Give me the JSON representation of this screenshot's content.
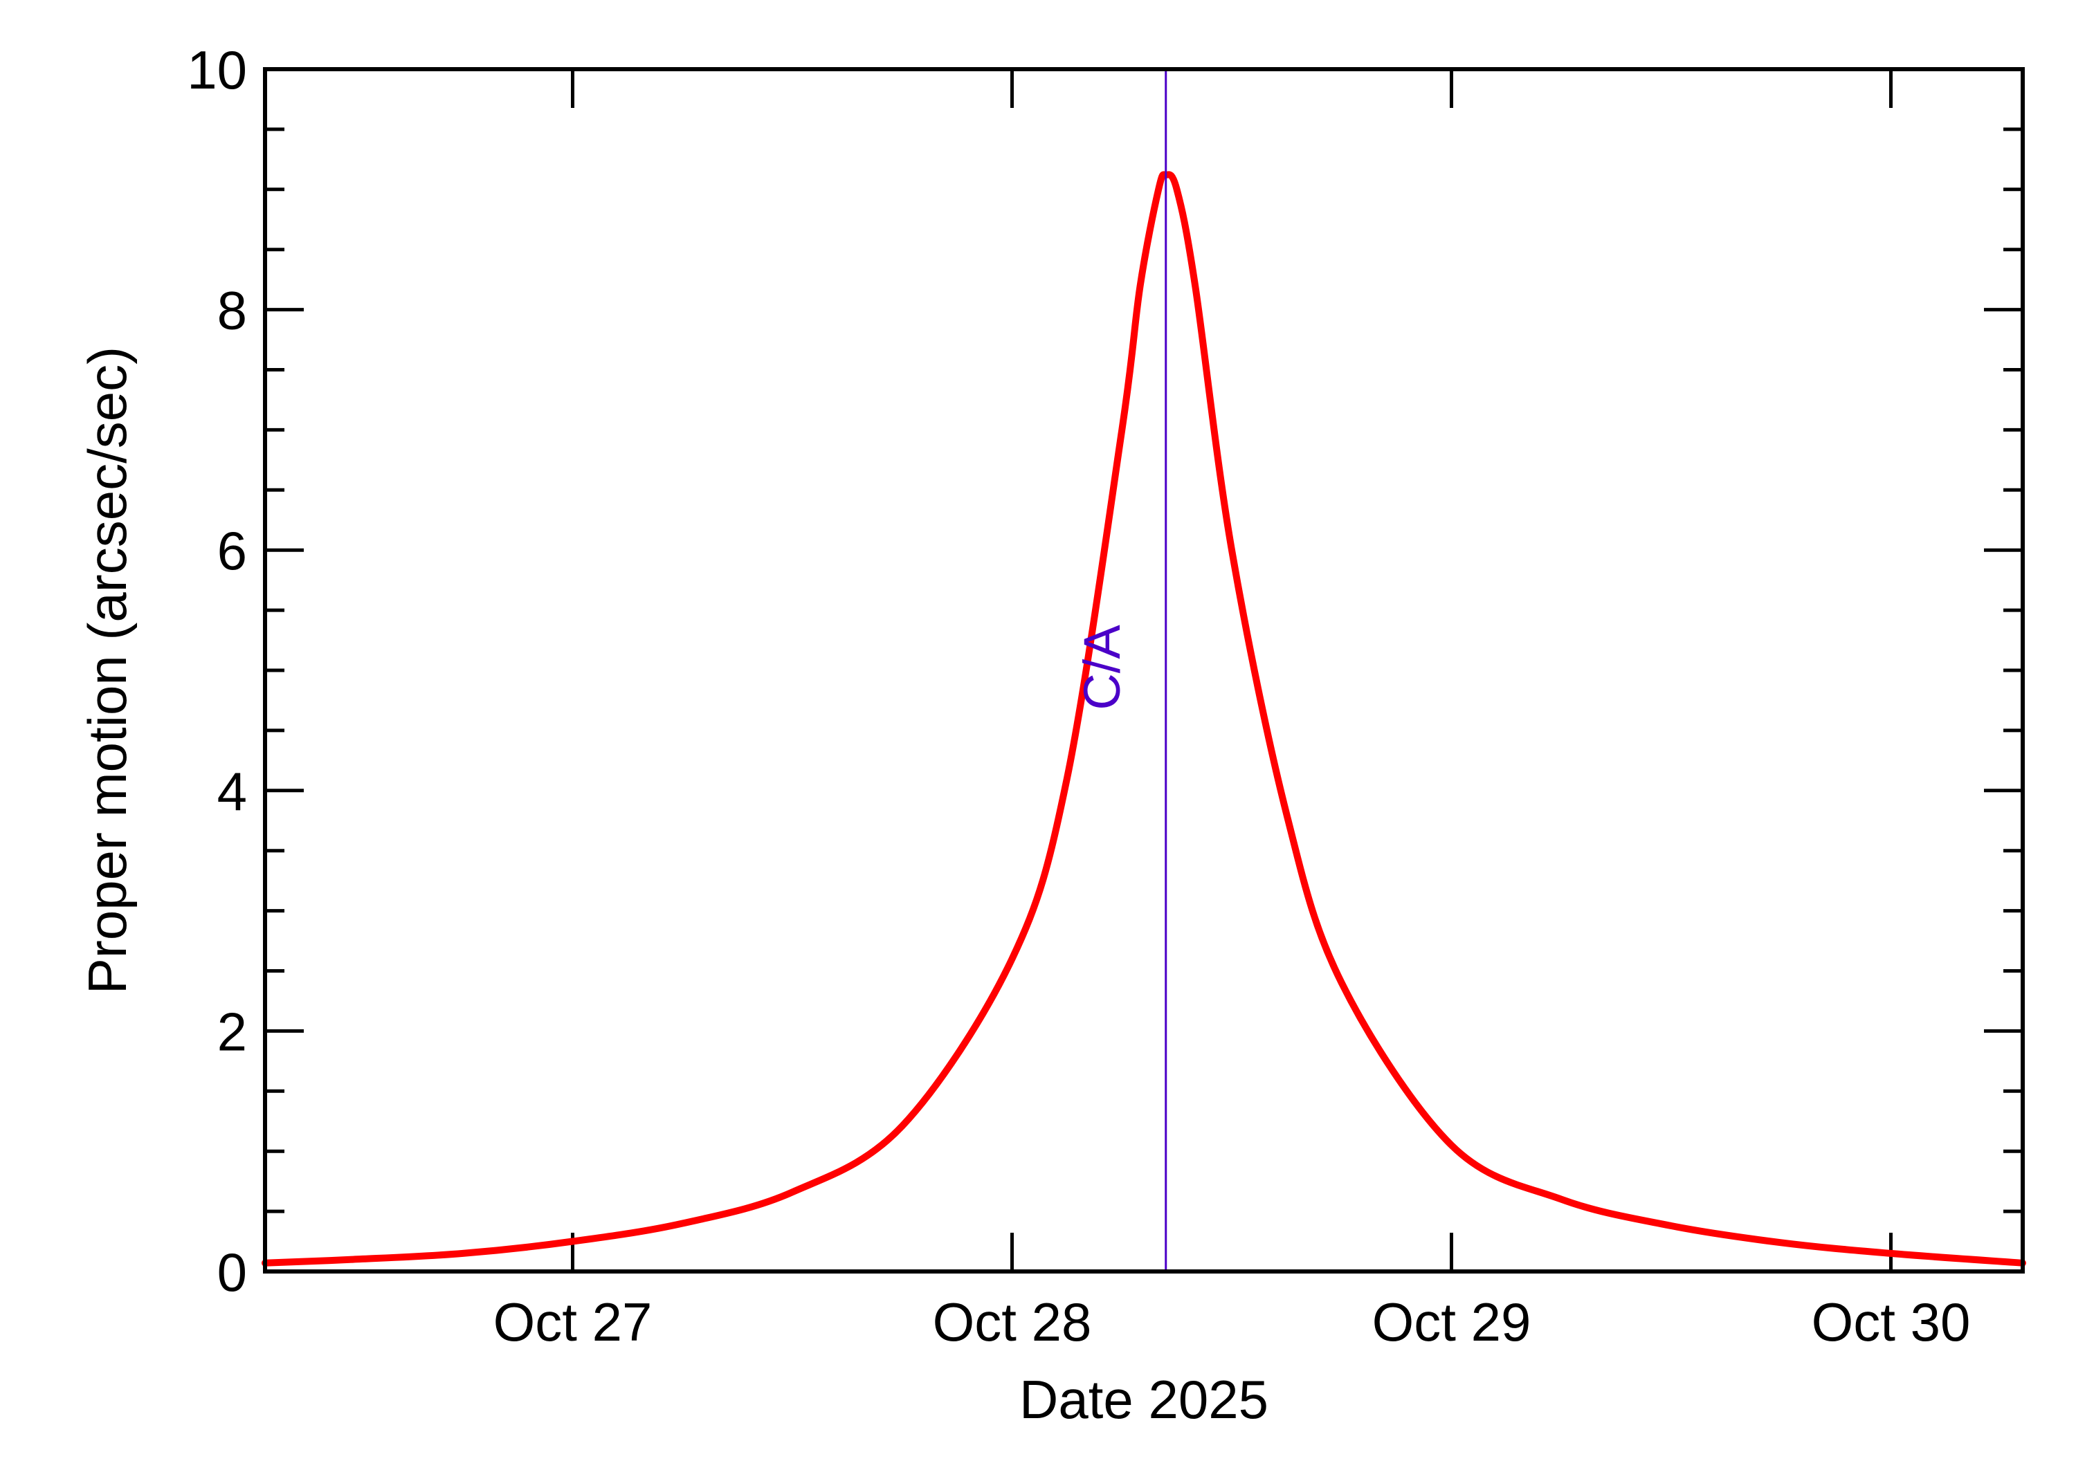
{
  "chart_data": {
    "type": "line",
    "title": "",
    "xlabel": "Date 2025",
    "ylabel": "Proper motion (arcsec/sec)",
    "xlim": [
      "2025-10-26 07:12",
      "2025-10-30 07:12"
    ],
    "ylim": [
      0,
      10
    ],
    "x_ticks": [
      {
        "date": "2025-10-27",
        "label": "Oct 27"
      },
      {
        "date": "2025-10-28",
        "label": "Oct 28"
      },
      {
        "date": "2025-10-29",
        "label": "Oct 29"
      },
      {
        "date": "2025-10-30",
        "label": "Oct 30"
      }
    ],
    "y_ticks": [
      0,
      2,
      4,
      6,
      8,
      10
    ],
    "y_minor_step": 0.5,
    "grid": false,
    "series": [
      {
        "color": "#ff0000",
        "points": [
          [
            "2025-10-26 07:12",
            0.07
          ],
          [
            "2025-10-26 12:00",
            0.1
          ],
          [
            "2025-10-26 18:00",
            0.15
          ],
          [
            "2025-10-27 00:00",
            0.25
          ],
          [
            "2025-10-27 06:00",
            0.4
          ],
          [
            "2025-10-27 12:00",
            0.66
          ],
          [
            "2025-10-27 18:00",
            1.21
          ],
          [
            "2025-10-28 00:00",
            2.6
          ],
          [
            "2025-10-28 03:00",
            4.1
          ],
          [
            "2025-10-28 06:00",
            7.0
          ],
          [
            "2025-10-28 07:00",
            8.2
          ],
          [
            "2025-10-28 08:00",
            9.0
          ],
          [
            "2025-10-28 08:24",
            9.12
          ],
          [
            "2025-10-28 09:00",
            9.0
          ],
          [
            "2025-10-28 10:00",
            8.2
          ],
          [
            "2025-10-28 12:00",
            6.0
          ],
          [
            "2025-10-28 15:00",
            3.8
          ],
          [
            "2025-10-28 18:00",
            2.4
          ],
          [
            "2025-10-29 00:00",
            1.05
          ],
          [
            "2025-10-29 06:00",
            0.6
          ],
          [
            "2025-10-29 12:00",
            0.38
          ],
          [
            "2025-10-29 18:00",
            0.24
          ],
          [
            "2025-10-30 00:00",
            0.15
          ],
          [
            "2025-10-30 07:12",
            0.07
          ]
        ]
      }
    ],
    "annotations": [
      {
        "type": "vline",
        "x": "2025-10-28 08:24",
        "label": "C/A",
        "color": "#4b00c8"
      }
    ]
  }
}
